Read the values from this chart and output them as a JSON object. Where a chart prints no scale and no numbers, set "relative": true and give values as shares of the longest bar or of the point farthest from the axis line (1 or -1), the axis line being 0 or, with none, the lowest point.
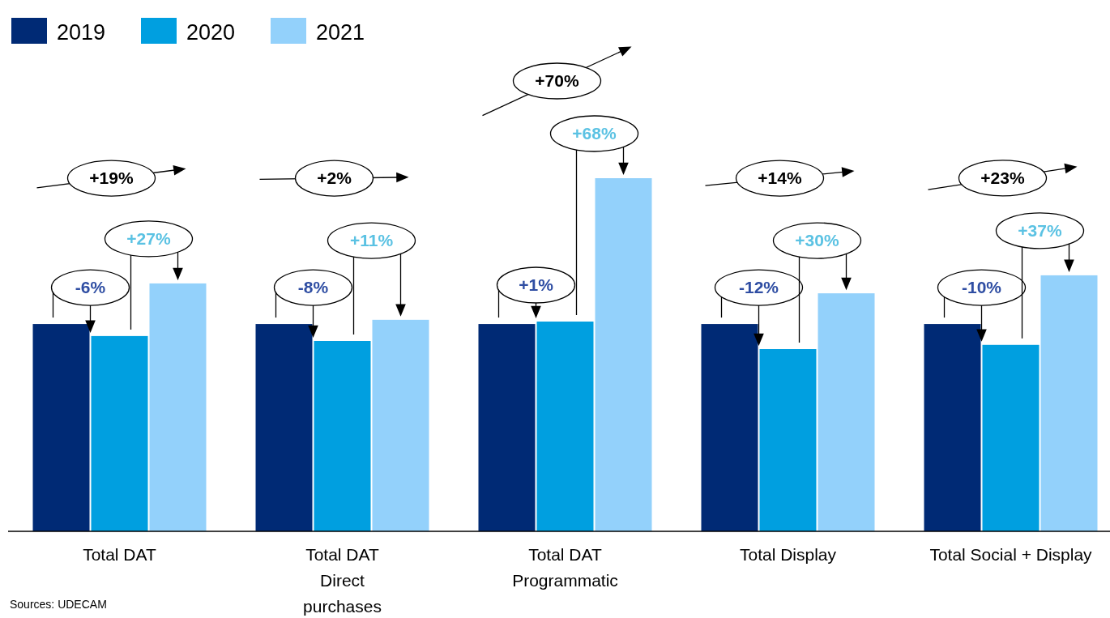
{
  "chart_data": {
    "type": "bar",
    "relative": true,
    "legend": "top left",
    "categories": [
      "Total DAT",
      "Total DAT\nDirect\npurchases",
      "Total DAT\nProgrammatic",
      "Total Display",
      "Total Social + Display"
    ],
    "series": [
      {
        "name": "2019",
        "color": "#002a75",
        "values": [
          0.587,
          0.587,
          0.587,
          0.587,
          0.587
        ]
      },
      {
        "name": "2020",
        "color": "#009fe0",
        "values": [
          0.553,
          0.539,
          0.594,
          0.516,
          0.528
        ]
      },
      {
        "name": "2021",
        "color": "#93d1fb",
        "values": [
          0.702,
          0.599,
          1,
          0.674,
          0.725
        ]
      }
    ],
    "annotations": [
      "-6%",
      "+27%",
      "+19%",
      "-8%",
      "+11%",
      "+2%",
      "+1%",
      "+68%",
      "+70%",
      "-12%",
      "+30%",
      "+14%",
      "-10%",
      "+37%",
      "+23%",
      "Sources: UDECAM"
    ]
  }
}
